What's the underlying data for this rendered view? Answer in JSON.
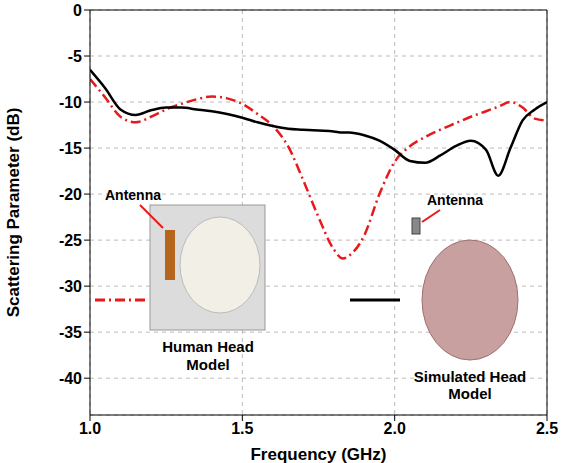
{
  "chart_data": {
    "type": "line",
    "x_label": "Frequency (GHz)",
    "y_label": "Scattering Parameter (dB)",
    "x": [
      1.0,
      1.05,
      1.1,
      1.15,
      1.2,
      1.25,
      1.3,
      1.35,
      1.4,
      1.45,
      1.5,
      1.55,
      1.6,
      1.65,
      1.7,
      1.75,
      1.8,
      1.83,
      1.85,
      1.9,
      1.95,
      2.0,
      2.05,
      2.1,
      2.15,
      2.2,
      2.25,
      2.3,
      2.34,
      2.38,
      2.42,
      2.46,
      2.5
    ],
    "series": [
      {
        "name": "Human Head Model",
        "color": "#e8191b",
        "line_style": "dashdot",
        "values": [
          -7.5,
          -9.5,
          -11.6,
          -12.2,
          -11.6,
          -10.8,
          -10.2,
          -9.7,
          -9.4,
          -9.6,
          -10.2,
          -11.3,
          -12.6,
          -14.8,
          -18.5,
          -22.5,
          -26.0,
          -27.0,
          -26.7,
          -24.5,
          -20.0,
          -16.5,
          -14.8,
          -13.8,
          -13.0,
          -12.3,
          -11.6,
          -11.0,
          -10.5,
          -10.0,
          -10.6,
          -11.8,
          -12.0
        ]
      },
      {
        "name": "Simulated Head Model",
        "color": "#000000",
        "line_style": "solid",
        "values": [
          -6.5,
          -8.5,
          -10.8,
          -11.4,
          -10.9,
          -10.6,
          -10.6,
          -10.8,
          -11.0,
          -11.3,
          -11.7,
          -12.2,
          -12.6,
          -12.9,
          -13.0,
          -13.1,
          -13.2,
          -13.3,
          -13.3,
          -13.6,
          -14.2,
          -15.2,
          -16.4,
          -16.6,
          -15.8,
          -14.8,
          -14.2,
          -15.2,
          -18.0,
          -15.0,
          -12.0,
          -10.8,
          -10.0
        ]
      }
    ],
    "xlim": [
      1.0,
      2.5
    ],
    "xticks": [
      {
        "value": 1.0,
        "label": "1.0"
      },
      {
        "value": 1.5,
        "label": "1.5"
      },
      {
        "value": 2.0,
        "label": "2.0"
      },
      {
        "value": 2.5,
        "label": "2.5"
      }
    ],
    "ylim": [
      -44,
      0
    ],
    "yticks": [
      0,
      -5,
      -10,
      -15,
      -20,
      -25,
      -30,
      -35,
      -40
    ],
    "grid": true,
    "legend": "bottom",
    "annotations": [
      "Antenna",
      "Antenna"
    ]
  }
}
